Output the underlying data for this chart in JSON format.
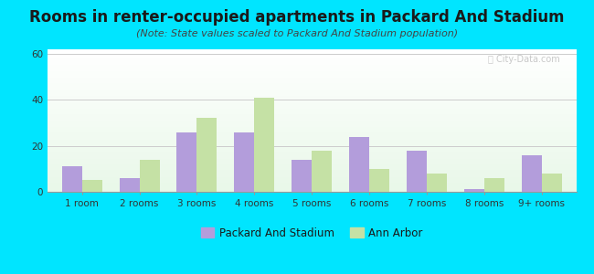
{
  "title": "Rooms in renter-occupied apartments in Packard And Stadium",
  "subtitle": "(Note: State values scaled to Packard And Stadium population)",
  "categories": [
    "1 room",
    "2 rooms",
    "3 rooms",
    "4 rooms",
    "5 rooms",
    "6 rooms",
    "7 rooms",
    "8 rooms",
    "9+ rooms"
  ],
  "packard_values": [
    11,
    6,
    26,
    26,
    14,
    24,
    18,
    1,
    16
  ],
  "ann_arbor_values": [
    5,
    14,
    32,
    41,
    18,
    10,
    8,
    6,
    8
  ],
  "packard_color": "#b39ddb",
  "ann_arbor_color": "#c5e1a5",
  "ylim": [
    0,
    62
  ],
  "yticks": [
    0,
    20,
    40,
    60
  ],
  "background_color": "#00e5ff",
  "title_fontsize": 12,
  "subtitle_fontsize": 8,
  "legend_label_packard": "Packard And Stadium",
  "legend_label_ann_arbor": "Ann Arbor",
  "watermark": "ⓘ City-Data.com"
}
